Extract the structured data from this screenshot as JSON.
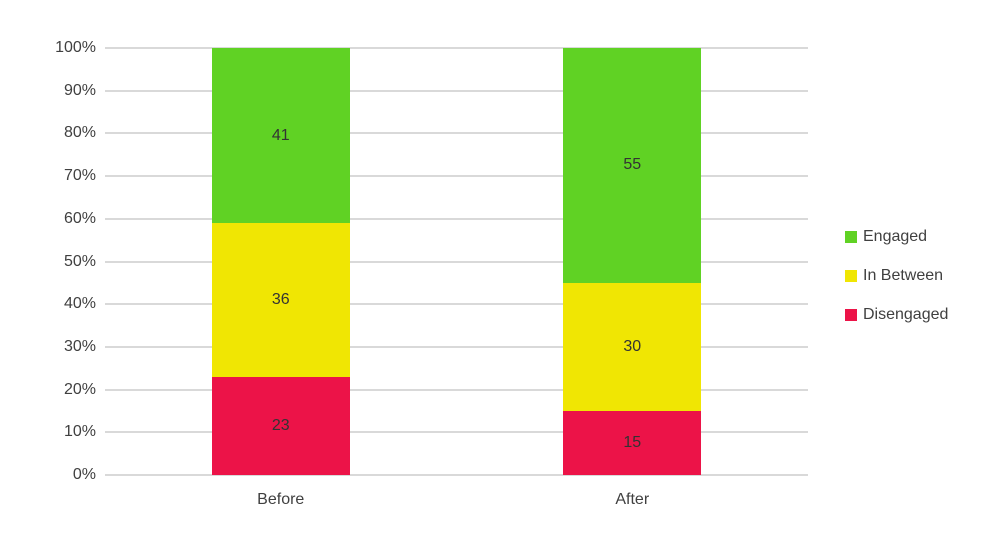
{
  "chart_data": {
    "type": "bar",
    "stacked": true,
    "title": "",
    "xlabel": "",
    "ylabel": "",
    "categories": [
      "Before",
      "After"
    ],
    "series": [
      {
        "name": "Engaged",
        "color": "#60D224",
        "values": [
          41,
          55
        ]
      },
      {
        "name": "In Between",
        "color": "#F0E603",
        "values": [
          36,
          30
        ]
      },
      {
        "name": "Disengaged",
        "color": "#EC1348",
        "values": [
          23,
          15
        ]
      }
    ],
    "ylim": [
      0,
      100
    ],
    "yticks": [
      "0%",
      "10%",
      "20%",
      "30%",
      "40%",
      "50%",
      "60%",
      "70%",
      "80%",
      "90%",
      "100%"
    ],
    "grid": true,
    "legend_position": "right",
    "colors": {
      "gridline": "#D9D9D9",
      "axis_text": "#404040",
      "data_label_text": "#333333",
      "background": "#FFFFFF"
    }
  }
}
